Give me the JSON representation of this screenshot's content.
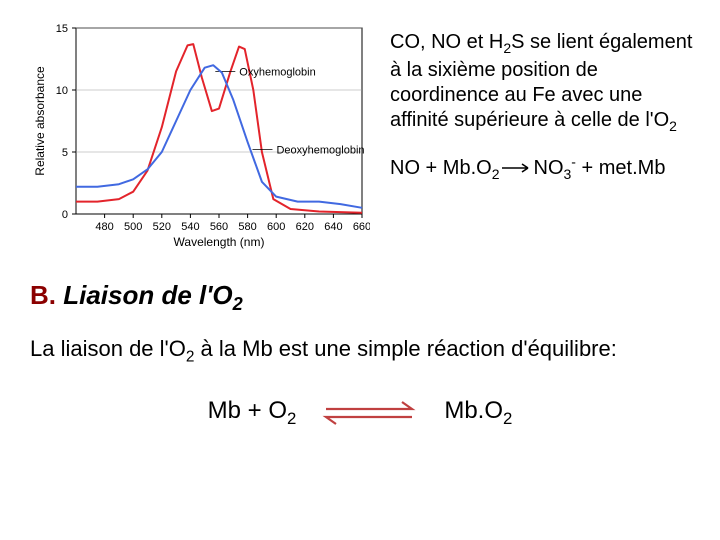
{
  "chart": {
    "type": "line",
    "background_color": "#ffffff",
    "plot_border_color": "#000000",
    "grid_color": "#999999",
    "xlabel": "Wavelength (nm)",
    "ylabel": "Relative absorbance",
    "label_fontsize": 12,
    "tick_fontsize": 11,
    "xlim": [
      460,
      660
    ],
    "ylim": [
      0,
      15
    ],
    "xticks": [
      480,
      500,
      520,
      540,
      560,
      580,
      600,
      620,
      640,
      660
    ],
    "yticks": [
      0,
      5,
      10,
      15
    ],
    "series": [
      {
        "name": "Oxyhemoglobin",
        "color": "#e3242b",
        "line_width": 2,
        "label_xy": [
          570,
          11.5
        ],
        "points": [
          [
            460,
            1.0
          ],
          [
            475,
            1.0
          ],
          [
            490,
            1.2
          ],
          [
            500,
            1.8
          ],
          [
            510,
            3.5
          ],
          [
            520,
            7.0
          ],
          [
            530,
            11.5
          ],
          [
            538,
            13.6
          ],
          [
            542,
            13.7
          ],
          [
            548,
            11.0
          ],
          [
            555,
            8.3
          ],
          [
            560,
            8.5
          ],
          [
            568,
            11.5
          ],
          [
            574,
            13.5
          ],
          [
            578,
            13.3
          ],
          [
            584,
            10.0
          ],
          [
            590,
            5.0
          ],
          [
            598,
            1.2
          ],
          [
            610,
            0.4
          ],
          [
            630,
            0.2
          ],
          [
            660,
            0.1
          ]
        ]
      },
      {
        "name": "Deoxyhemoglobin",
        "color": "#4169e1",
        "line_width": 2,
        "label_xy": [
          596,
          5.2
        ],
        "points": [
          [
            460,
            2.2
          ],
          [
            475,
            2.2
          ],
          [
            490,
            2.4
          ],
          [
            500,
            2.8
          ],
          [
            510,
            3.6
          ],
          [
            520,
            5.0
          ],
          [
            530,
            7.5
          ],
          [
            540,
            10.0
          ],
          [
            550,
            11.8
          ],
          [
            556,
            12.0
          ],
          [
            562,
            11.4
          ],
          [
            570,
            9.2
          ],
          [
            580,
            5.8
          ],
          [
            590,
            2.6
          ],
          [
            600,
            1.4
          ],
          [
            615,
            1.0
          ],
          [
            630,
            1.0
          ],
          [
            645,
            0.8
          ],
          [
            660,
            0.5
          ]
        ]
      }
    ]
  },
  "text": {
    "paragraph1_parts": [
      "CO, NO et H",
      "2",
      "S se lient également à la sixième position de coordinence au Fe avec une affinité supérieure à celle de l'O",
      "2"
    ],
    "eq1_lhs_parts": [
      "NO + Mb.O",
      "2"
    ],
    "eq1_rhs_parts": [
      "NO",
      "3",
      "-",
      " + met.Mb"
    ],
    "arrow_color": "#000000",
    "heading_prefix": "B.",
    "heading_rest_parts": [
      " Liaison de l'O",
      "2"
    ],
    "heading_prefix_color": "#8b0000",
    "body_parts": [
      "La liaison de l'O",
      "2",
      " à la Mb est une simple réaction d'équilibre:"
    ],
    "eq2_lhs_parts": [
      "Mb + O",
      "2"
    ],
    "eq2_rhs_parts": [
      "Mb.O",
      "2"
    ],
    "eq2_arrow_color": "#c04040"
  }
}
